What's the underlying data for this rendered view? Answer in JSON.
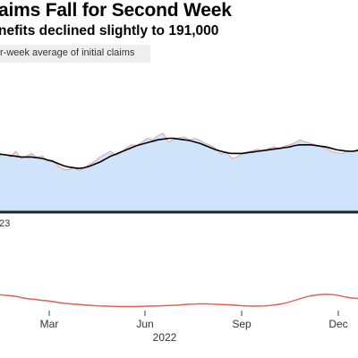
{
  "title": "aims Fall for Second Week",
  "subtitle": "nefits declined slightly to 191,000",
  "legend_label": "r-week average of initial claims",
  "chart_data": [
    {
      "type": "area",
      "series": [
        {
          "name": "",
          "type": "area",
          "color": "#e8a0a8",
          "fill": "#cfe4fb",
          "values": [
            0.64,
            0.66,
            0.62,
            0.7,
            0.6,
            0.63,
            0.67,
            0.61,
            0.64,
            0.56,
            0.58,
            0.5,
            0.45,
            0.44,
            0.47,
            0.43,
            0.46,
            0.52,
            0.56,
            0.62,
            0.66,
            0.7,
            0.64,
            0.68,
            0.75,
            0.79,
            0.78,
            0.83,
            0.88,
            0.86,
            0.92,
            0.95,
            0.83,
            0.86,
            0.89,
            0.9,
            0.86,
            0.88,
            0.85,
            0.81,
            0.78,
            0.74,
            0.66,
            0.7,
            0.6,
            0.62,
            0.67,
            0.69,
            0.71,
            0.73,
            0.7,
            0.74,
            0.76,
            0.73,
            0.77,
            0.79,
            0.82,
            0.86,
            0.83,
            0.81,
            0.79,
            0.76,
            0.74,
            0.7,
            0.68,
            0.67,
            0.71,
            0.69,
            0.73
          ]
        },
        {
          "name": "",
          "type": "line",
          "color": "#000000",
          "values": [
            0.66,
            0.65,
            0.64,
            0.63,
            0.62,
            0.62,
            0.62,
            0.61,
            0.6,
            0.58,
            0.56,
            0.53,
            0.5,
            0.48,
            0.47,
            0.46,
            0.47,
            0.49,
            0.52,
            0.55,
            0.59,
            0.63,
            0.66,
            0.69,
            0.72,
            0.75,
            0.78,
            0.8,
            0.82,
            0.84,
            0.86,
            0.87,
            0.88,
            0.88,
            0.87,
            0.86,
            0.85,
            0.83,
            0.81,
            0.78,
            0.75,
            0.72,
            0.7,
            0.68,
            0.67,
            0.67,
            0.67,
            0.68,
            0.69,
            0.7,
            0.71,
            0.72,
            0.73,
            0.74,
            0.75,
            0.76,
            0.78,
            0.79,
            0.79,
            0.79,
            0.78,
            0.77,
            0.76,
            0.74,
            0.72,
            0.71,
            0.7,
            0.7,
            0.71
          ]
        }
      ],
      "baseline_label": "23",
      "grid": false
    },
    {
      "type": "line",
      "series": [
        {
          "name": "",
          "color": "#e06050",
          "values": [
            0.55,
            0.52,
            0.5,
            0.46,
            0.4,
            0.36,
            0.34,
            0.3,
            0.28,
            0.24,
            0.2,
            0.16,
            0.14,
            0.12,
            0.1,
            0.08,
            0.06,
            0.05,
            0.04,
            0.03,
            0.03,
            0.02,
            0.02,
            0.02,
            0.03,
            0.04,
            0.04,
            0.05,
            0.06,
            0.07,
            0.08,
            0.1,
            0.12,
            0.13,
            0.14,
            0.14,
            0.13,
            0.12,
            0.11,
            0.1,
            0.08,
            0.06,
            0.05,
            0.04,
            0.04,
            0.05,
            0.07,
            0.1,
            0.14,
            0.2,
            0.28,
            0.36,
            0.44,
            0.5,
            0.54,
            0.56,
            0.56,
            0.55,
            0.5,
            0.44,
            0.4,
            0.38
          ]
        }
      ],
      "x_ticks": [
        "Mar",
        "Jun",
        "Sep",
        "Dec"
      ],
      "x_year": "2022",
      "grid": false
    }
  ]
}
